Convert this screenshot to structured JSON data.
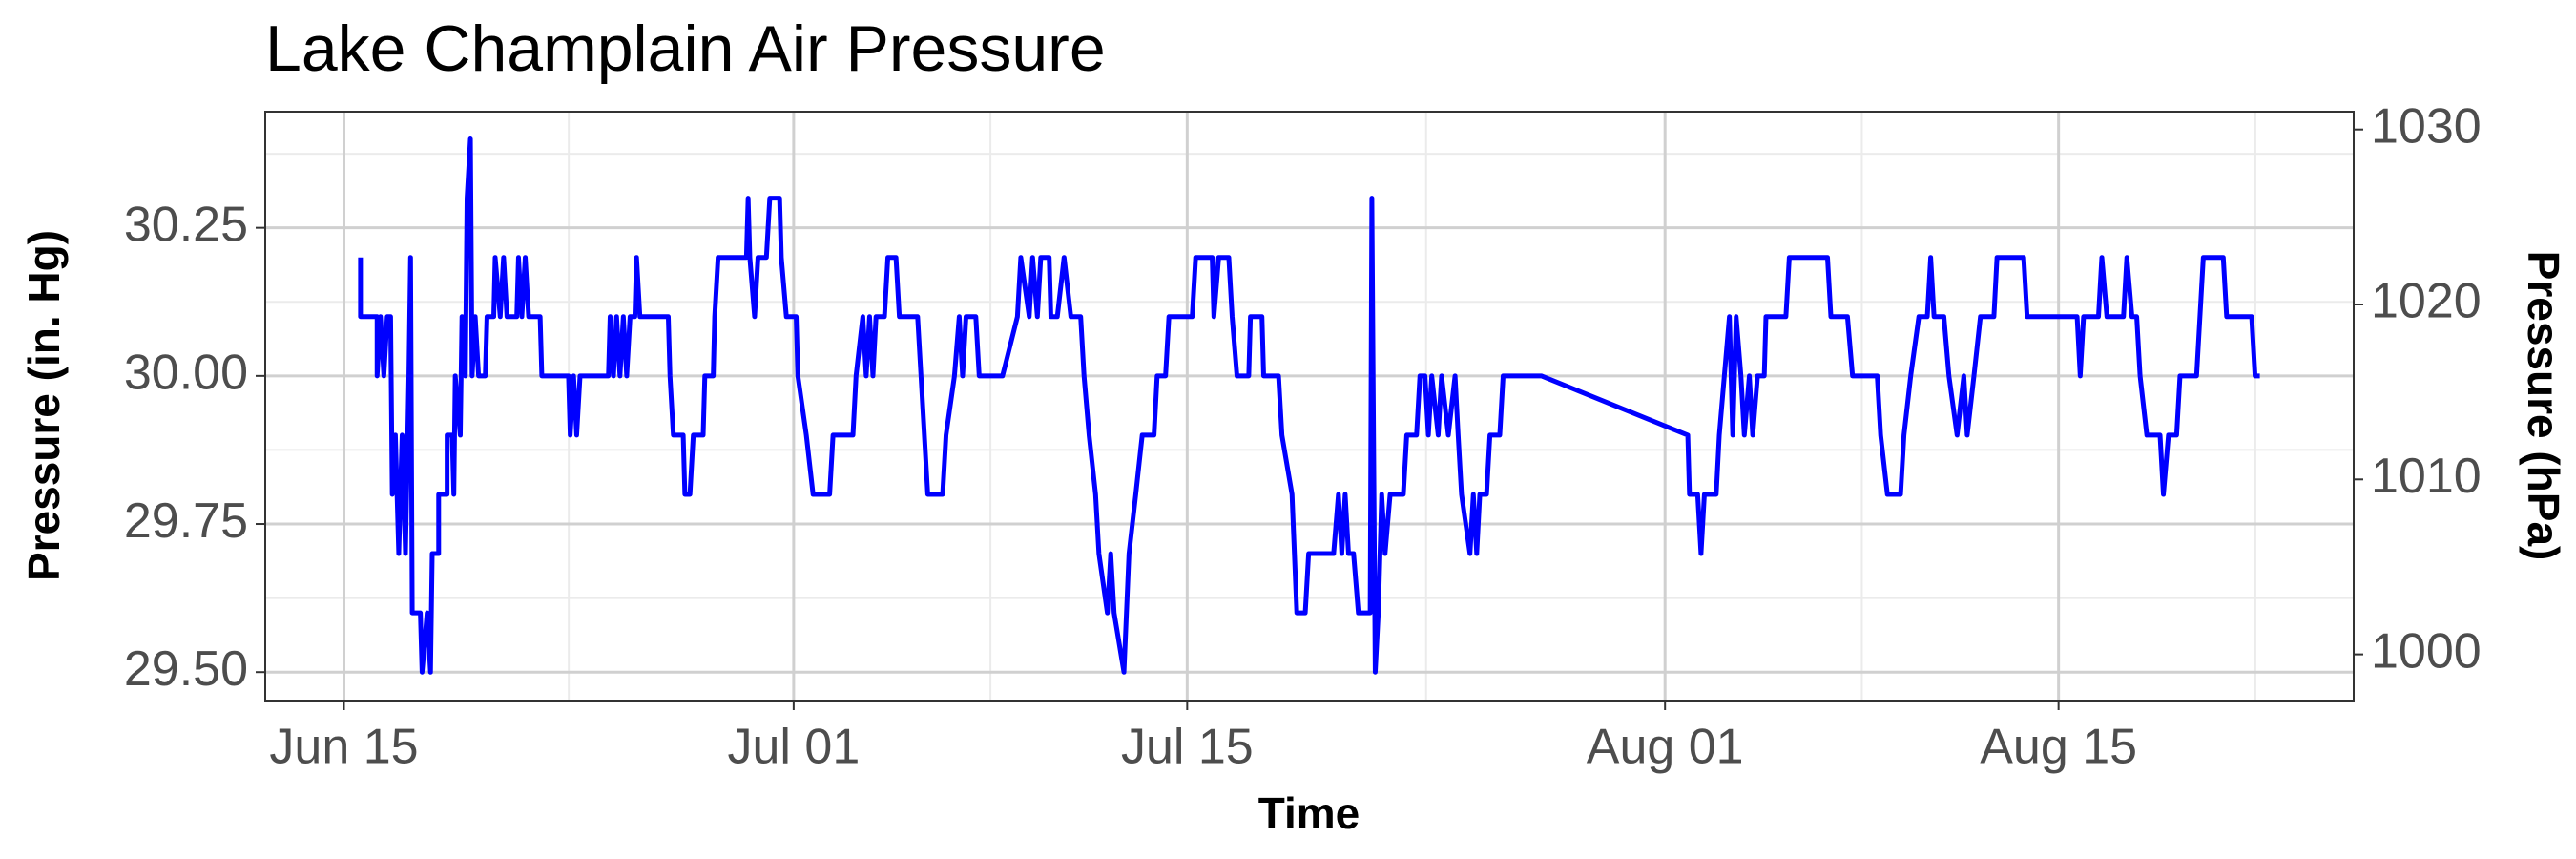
{
  "chart_data": {
    "type": "line",
    "title": "Lake Champlain Air Pressure",
    "xlabel": "Time",
    "ylabel": "Pressure (in. Hg)",
    "y2label": "Pressure (hPa)",
    "color": "#0000ff",
    "grid": true,
    "xlim": [
      163.2,
      237.5
    ],
    "xticks": [
      {
        "value": 166,
        "label": "Jun 15"
      },
      {
        "value": 182,
        "label": "Jul 01"
      },
      {
        "value": 196,
        "label": "Jul 15"
      },
      {
        "value": 213,
        "label": "Aug 01"
      },
      {
        "value": 227,
        "label": "Aug 15"
      }
    ],
    "ylim": [
      29.452,
      30.446
    ],
    "yticks": [
      {
        "value": 29.5,
        "label": "29.50"
      },
      29.75,
      {
        "value": 30,
        "label": "30.00"
      },
      30.25
    ],
    "y2lim": [
      997.36,
      1031.02
    ],
    "y2ticks": [
      1000,
      1010,
      1020,
      1030
    ],
    "x": [
      166.59,
      166.59,
      167.18,
      167.18,
      167.3,
      167.42,
      167.54,
      167.66,
      167.72,
      167.83,
      167.95,
      168.07,
      168.19,
      168.31,
      168.37,
      168.43,
      168.72,
      168.78,
      168.96,
      169.08,
      169.14,
      169.37,
      169.37,
      169.67,
      169.67,
      169.85,
      169.91,
      169.96,
      170.14,
      170.2,
      170.32,
      170.38,
      170.5,
      170.56,
      170.67,
      170.79,
      171.03,
      171.09,
      171.33,
      171.38,
      171.56,
      171.68,
      171.8,
      172.15,
      172.21,
      172.33,
      172.45,
      172.57,
      172.98,
      173.04,
      173.99,
      174.05,
      174.17,
      174.28,
      174.4,
      175.41,
      175.47,
      175.59,
      175.7,
      175.82,
      175.94,
      176.06,
      176.18,
      176.35,
      176.41,
      176.53,
      177.54,
      177.6,
      177.72,
      178.07,
      178.13,
      178.31,
      178.43,
      178.78,
      178.84,
      179.14,
      179.19,
      179.31,
      180.32,
      180.38,
      180.44,
      180.61,
      180.73,
      181.03,
      181.15,
      181.5,
      181.56,
      181.74,
      182.09,
      182.15,
      182.45,
      182.69,
      183.28,
      183.4,
      184.11,
      184.22,
      184.46,
      184.58,
      184.7,
      184.82,
      184.93,
      185.23,
      185.35,
      185.64,
      185.76,
      186.41,
      186.53,
      186.77,
      187.3,
      187.42,
      187.72,
      187.89,
      188.01,
      188.13,
      188.48,
      188.6,
      189.43,
      189.96,
      190.08,
      190.38,
      190.5,
      190.67,
      190.79,
      191.09,
      191.15,
      191.38,
      191.62,
      191.86,
      192.21,
      192.33,
      192.51,
      192.74,
      192.86,
      193.16,
      193.28,
      193.4,
      193.75,
      193.93,
      194.17,
      194.4,
      194.82,
      194.93,
      195.23,
      195.35,
      196.18,
      196.3,
      196.89,
      196.95,
      197.12,
      197.48,
      197.6,
      197.77,
      198.19,
      198.25,
      198.66,
      198.72,
      199.25,
      199.37,
      199.73,
      199.9,
      200.2,
      200.32,
      201.21,
      201.38,
      201.5,
      201.62,
      201.74,
      201.92,
      202.09,
      202.51,
      202.57,
      202.69,
      202.8,
      202.92,
      203.04,
      203.22,
      203.69,
      203.81,
      204.16,
      204.28,
      204.46,
      204.58,
      204.7,
      204.93,
      205.05,
      205.29,
      205.53,
      205.64,
      205.76,
      206.06,
      206.18,
      206.3,
      206.41,
      206.65,
      206.77,
      207.12,
      207.24,
      208.6,
      213.81,
      213.87,
      214.16,
      214.28,
      214.4,
      214.82,
      214.93,
      215.11,
      215.29,
      215.41,
      215.53,
      215.7,
      215.82,
      216.0,
      216.12,
      216.29,
      216.53,
      216.59,
      217.3,
      217.42,
      218.78,
      218.9,
      219.49,
      219.67,
      220.55,
      220.67,
      220.91,
      221.38,
      221.5,
      221.74,
      222.03,
      222.33,
      222.45,
      222.57,
      222.92,
      223.1,
      223.39,
      223.63,
      223.75,
      223.99,
      224.22,
      224.7,
      224.81,
      225.76,
      225.88,
      227.66,
      227.77,
      227.89,
      228.42,
      228.54,
      228.72,
      229.31,
      229.43,
      229.61,
      229.78,
      229.9,
      230.14,
      230.61,
      230.73,
      230.91,
      231.2,
      231.32,
      231.91,
      232.03,
      232.15,
      232.86,
      232.98,
      233.87,
      233.99,
      234.16
    ],
    "values": [
      30.2,
      30.1,
      30.1,
      30.0,
      30.1,
      30.0,
      30.1,
      30.1,
      29.8,
      29.9,
      29.7,
      29.9,
      29.7,
      30.0,
      30.2,
      29.6,
      29.6,
      29.5,
      29.6,
      29.5,
      29.7,
      29.7,
      29.8,
      29.8,
      29.9,
      29.9,
      29.8,
      30.0,
      29.9,
      30.1,
      30.0,
      30.3,
      30.4,
      30.0,
      30.1,
      30.0,
      30.0,
      30.1,
      30.1,
      30.2,
      30.1,
      30.2,
      30.1,
      30.1,
      30.2,
      30.1,
      30.2,
      30.1,
      30.1,
      30.0,
      30.0,
      29.9,
      30.0,
      29.9,
      30.0,
      30.0,
      30.1,
      30.0,
      30.1,
      30.0,
      30.1,
      30.0,
      30.1,
      30.1,
      30.2,
      30.1,
      30.1,
      30.0,
      29.9,
      29.9,
      29.8,
      29.8,
      29.9,
      29.9,
      30.0,
      30.0,
      30.1,
      30.2,
      30.2,
      30.3,
      30.2,
      30.1,
      30.2,
      30.2,
      30.3,
      30.3,
      30.2,
      30.1,
      30.1,
      30.0,
      29.9,
      29.8,
      29.8,
      29.9,
      29.9,
      30.0,
      30.1,
      30.0,
      30.1,
      30.0,
      30.1,
      30.1,
      30.2,
      30.2,
      30.1,
      30.1,
      30.0,
      29.8,
      29.8,
      29.9,
      30.0,
      30.1,
      30.0,
      30.1,
      30.1,
      30.0,
      30.0,
      30.1,
      30.2,
      30.1,
      30.2,
      30.1,
      30.2,
      30.2,
      30.1,
      30.1,
      30.2,
      30.1,
      30.1,
      30.0,
      29.9,
      29.8,
      29.7,
      29.6,
      29.7,
      29.6,
      29.5,
      29.7,
      29.8,
      29.9,
      29.9,
      30.0,
      30.0,
      30.1,
      30.1,
      30.2,
      30.2,
      30.1,
      30.2,
      30.2,
      30.1,
      30.0,
      30.0,
      30.1,
      30.1,
      30.0,
      30.0,
      29.9,
      29.8,
      29.6,
      29.6,
      29.7,
      29.7,
      29.8,
      29.7,
      29.8,
      29.7,
      29.7,
      29.6,
      29.6,
      30.3,
      29.5,
      29.6,
      29.8,
      29.7,
      29.8,
      29.8,
      29.9,
      29.9,
      30.0,
      30.0,
      29.9,
      30.0,
      29.9,
      30.0,
      29.9,
      30.0,
      29.9,
      29.8,
      29.7,
      29.8,
      29.7,
      29.8,
      29.8,
      29.9,
      29.9,
      30.0,
      30.0,
      29.9,
      29.8,
      29.8,
      29.7,
      29.8,
      29.8,
      29.9,
      30.0,
      30.1,
      29.9,
      30.1,
      30.0,
      29.9,
      30.0,
      29.9,
      30.0,
      30.0,
      30.1,
      30.1,
      30.2,
      30.2,
      30.1,
      30.1,
      30.0,
      30.0,
      29.9,
      29.8,
      29.8,
      29.9,
      30.0,
      30.1,
      30.1,
      30.2,
      30.1,
      30.1,
      30.0,
      29.9,
      30.0,
      29.9,
      30.0,
      30.1,
      30.1,
      30.2,
      30.2,
      30.1,
      30.1,
      30.0,
      30.1,
      30.1,
      30.2,
      30.1,
      30.1,
      30.2,
      30.1,
      30.1,
      30.0,
      29.9,
      29.9,
      29.8,
      29.9,
      29.9,
      30.0,
      30.0,
      30.1,
      30.2,
      30.2,
      30.1,
      30.1,
      30.0,
      30.0
    ]
  }
}
